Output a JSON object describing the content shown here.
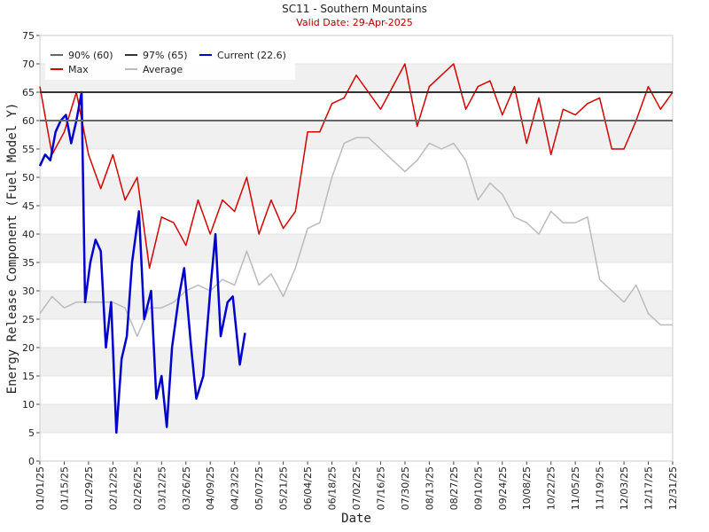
{
  "chart_data": {
    "type": "line",
    "title": "SC11 - Southern Mountains",
    "subtitle": "Valid Date: 29-Apr-2025",
    "xlabel": "Date",
    "ylabel": "Energy Release Component (Fuel Model Y)",
    "ylim": [
      0,
      75
    ],
    "yticks": [
      0,
      5,
      10,
      15,
      20,
      25,
      30,
      35,
      40,
      45,
      50,
      55,
      60,
      65,
      70,
      75
    ],
    "xticks": [
      "01/01/25",
      "01/15/25",
      "01/29/25",
      "02/12/25",
      "02/26/25",
      "03/12/25",
      "03/26/25",
      "04/09/25",
      "04/23/25",
      "05/07/25",
      "05/21/25",
      "06/04/25",
      "06/18/25",
      "07/02/25",
      "07/16/25",
      "07/30/25",
      "08/13/25",
      "08/27/25",
      "09/10/25",
      "09/24/25",
      "10/08/25",
      "10/22/25",
      "11/05/25",
      "11/19/25",
      "12/03/25",
      "12/17/25",
      "12/31/25"
    ],
    "grid": "bands",
    "legend": "upper left",
    "series": [
      {
        "name": "90% (60)",
        "color": "#666666",
        "value": 60
      },
      {
        "name": "97% (65)",
        "color": "#333333",
        "value": 65
      },
      {
        "name": "Current (22.6)",
        "color": "#0000cc",
        "x": [
          "01/01/25",
          "01/04/25",
          "01/07/25",
          "01/10/25",
          "01/13/25",
          "01/16/25",
          "01/19/25",
          "01/22/25",
          "01/25/25",
          "01/27/25",
          "01/30/25",
          "02/02/25",
          "02/05/25",
          "02/08/25",
          "02/11/25",
          "02/14/25",
          "02/17/25",
          "02/20/25",
          "02/23/25",
          "02/27/25",
          "03/02/25",
          "03/06/25",
          "03/09/25",
          "03/12/25",
          "03/15/25",
          "03/18/25",
          "03/22/25",
          "03/25/25",
          "03/29/25",
          "04/01/25",
          "04/05/25",
          "04/09/25",
          "04/12/25",
          "04/15/25",
          "04/19/25",
          "04/22/25",
          "04/26/25",
          "04/29/25"
        ],
        "values": [
          52,
          54,
          53,
          58,
          60,
          61,
          56,
          60,
          65,
          28,
          35,
          39,
          37,
          20,
          28,
          5,
          18,
          22,
          35,
          44,
          25,
          30,
          11,
          15,
          6,
          20,
          29,
          34,
          20,
          11,
          15,
          30,
          40,
          22,
          28,
          29,
          17,
          22.6
        ]
      },
      {
        "name": "Max",
        "color": "#d40000",
        "x": [
          "01/01/25",
          "01/08/25",
          "01/15/25",
          "01/22/25",
          "01/29/25",
          "02/05/25",
          "02/12/25",
          "02/19/25",
          "02/26/25",
          "03/05/25",
          "03/12/25",
          "03/19/25",
          "03/26/25",
          "04/02/25",
          "04/09/25",
          "04/16/25",
          "04/23/25",
          "04/30/25",
          "05/07/25",
          "05/14/25",
          "05/21/25",
          "05/28/25",
          "06/04/25",
          "06/11/25",
          "06/18/25",
          "06/25/25",
          "07/02/25",
          "07/09/25",
          "07/16/25",
          "07/23/25",
          "07/30/25",
          "08/06/25",
          "08/13/25",
          "08/20/25",
          "08/27/25",
          "09/03/25",
          "09/10/25",
          "09/17/25",
          "09/24/25",
          "10/01/25",
          "10/08/25",
          "10/15/25",
          "10/22/25",
          "10/29/25",
          "11/05/25",
          "11/12/25",
          "11/19/25",
          "11/26/25",
          "12/03/25",
          "12/10/25",
          "12/17/25",
          "12/24/25",
          "12/31/25"
        ],
        "values": [
          66,
          54,
          58,
          65,
          54,
          48,
          54,
          46,
          50,
          34,
          43,
          42,
          38,
          46,
          40,
          46,
          44,
          50,
          40,
          46,
          41,
          44,
          58,
          58,
          63,
          64,
          68,
          65,
          62,
          66,
          70,
          59,
          66,
          68,
          70,
          62,
          66,
          67,
          61,
          66,
          56,
          64,
          54,
          62,
          61,
          63,
          64,
          55,
          55,
          60,
          66,
          62,
          65
        ]
      },
      {
        "name": "Average",
        "color": "#bbbbbb",
        "x": [
          "01/01/25",
          "01/08/25",
          "01/15/25",
          "01/22/25",
          "01/29/25",
          "02/05/25",
          "02/12/25",
          "02/19/25",
          "02/26/25",
          "03/05/25",
          "03/12/25",
          "03/19/25",
          "03/26/25",
          "04/02/25",
          "04/09/25",
          "04/16/25",
          "04/23/25",
          "04/30/25",
          "05/07/25",
          "05/14/25",
          "05/21/25",
          "05/28/25",
          "06/04/25",
          "06/11/25",
          "06/18/25",
          "06/25/25",
          "07/02/25",
          "07/09/25",
          "07/16/25",
          "07/23/25",
          "07/30/25",
          "08/06/25",
          "08/13/25",
          "08/20/25",
          "08/27/25",
          "09/03/25",
          "09/10/25",
          "09/17/25",
          "09/24/25",
          "10/01/25",
          "10/08/25",
          "10/15/25",
          "10/22/25",
          "10/29/25",
          "11/05/25",
          "11/12/25",
          "11/19/25",
          "11/26/25",
          "12/03/25",
          "12/10/25",
          "12/17/25",
          "12/24/25",
          "12/31/25"
        ],
        "values": [
          26,
          29,
          27,
          28,
          28,
          28,
          28,
          27,
          22,
          27,
          27,
          28,
          30,
          31,
          30,
          32,
          31,
          37,
          31,
          33,
          29,
          34,
          41,
          42,
          50,
          56,
          57,
          57,
          55,
          53,
          51,
          53,
          56,
          55,
          56,
          53,
          46,
          49,
          47,
          43,
          42,
          40,
          44,
          42,
          42,
          43,
          32,
          30,
          28,
          31,
          26,
          24,
          24
        ]
      }
    ]
  }
}
